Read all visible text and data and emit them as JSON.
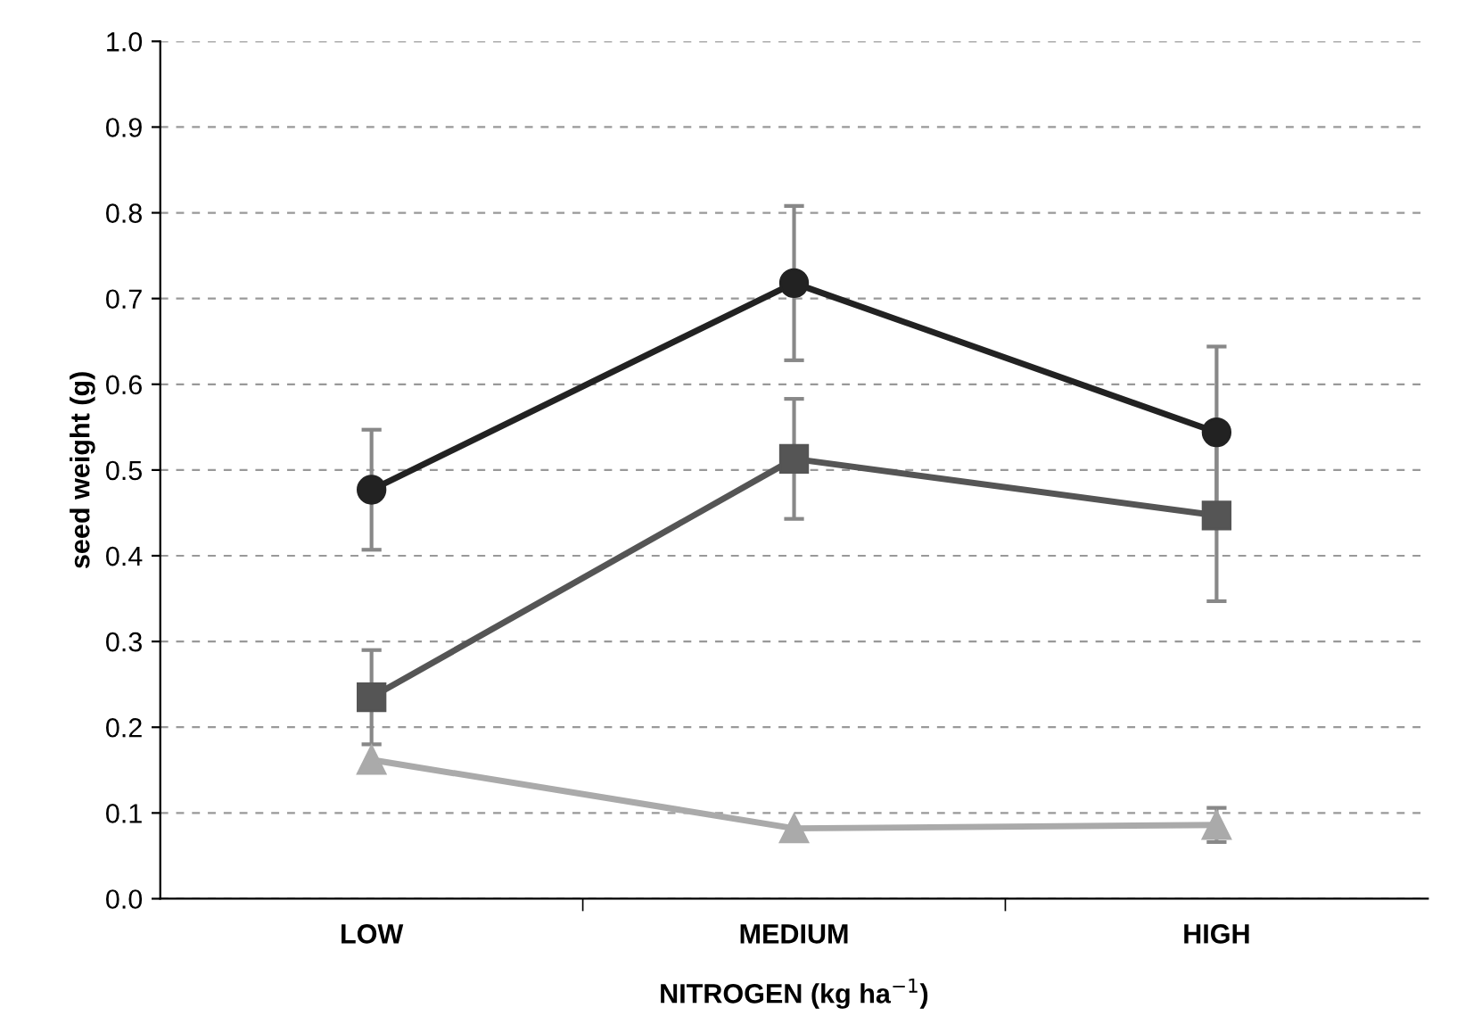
{
  "chart_data": {
    "type": "line",
    "xlabel": "NITROGEN (kg ha$^{−1}$)",
    "ylabel": "seed weight (g)",
    "categories": [
      "LOW",
      "MEDIUM",
      "HIGH"
    ],
    "series": [
      {
        "color": "#222222",
        "marker": "circle",
        "values": [
          0.477,
          0.718,
          0.544
        ],
        "errors": [
          0.07,
          0.09,
          0.1
        ]
      },
      {
        "color": "#555555",
        "marker": "square",
        "values": [
          0.235,
          0.513,
          0.447
        ],
        "errors": [
          0.055,
          0.07,
          0.1
        ]
      },
      {
        "color": "#aaaaaa",
        "marker": "triangle",
        "values": [
          0.162,
          0.082,
          0.086
        ],
        "errors": [
          null,
          null,
          0.02
        ]
      }
    ],
    "ylim": [
      0,
      1.0
    ],
    "yticks": [
      {
        "value": 0,
        "label": "0.0"
      },
      0.1,
      0.2,
      0.3,
      0.4,
      0.5,
      0.6,
      0.7,
      0.8,
      0.9,
      {
        "value": 1.0,
        "label": "1.0"
      }
    ],
    "grid": "y",
    "line_style": "solid",
    "legend": false
  }
}
